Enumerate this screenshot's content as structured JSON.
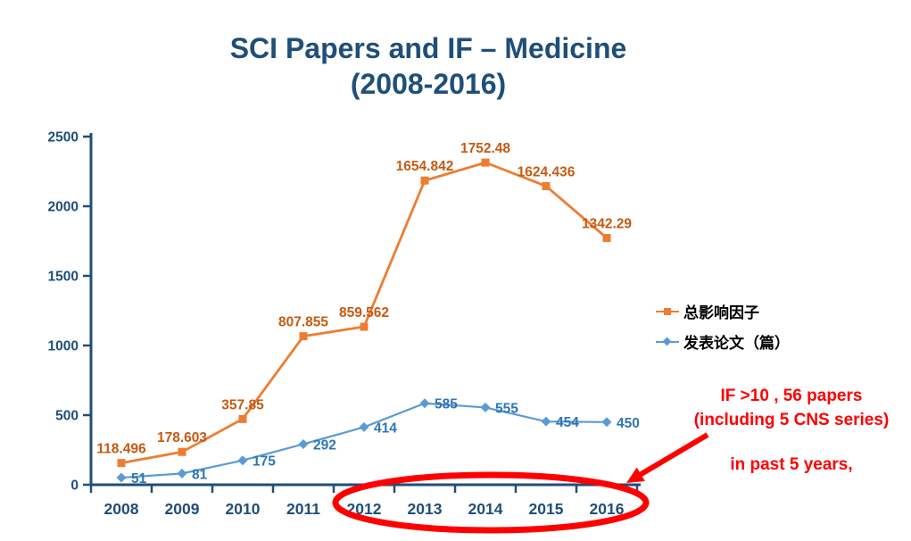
{
  "title": {
    "line1": "SCI Papers and IF – Medicine",
    "line2": "(2008-2016)"
  },
  "chart_data": {
    "type": "line",
    "categories": [
      "2008",
      "2009",
      "2010",
      "2011",
      "2012",
      "2013",
      "2014",
      "2015",
      "2016"
    ],
    "series": [
      {
        "name": "总影响因子",
        "values": [
          118.496,
          178.603,
          357.85,
          807.855,
          859.562,
          1654.842,
          1752.48,
          1624.436,
          1342.29
        ],
        "line_color": "#ED7D31",
        "label_color": "#C55A11",
        "marker": "square",
        "label_position": "above",
        "visual_scale": 1.32
      },
      {
        "name": "发表论文（篇）",
        "values": [
          51,
          81,
          175,
          292,
          414,
          585,
          555,
          454,
          450
        ],
        "line_color": "#5B9BD5",
        "label_color": "#2E75B6",
        "marker": "diamond",
        "label_position": "right",
        "visual_scale": 1
      }
    ],
    "ylim": [
      0,
      2500
    ],
    "yticks": [
      0,
      500,
      1000,
      1500,
      2000,
      2500
    ],
    "axis_color": "#1F4E79",
    "grid": false,
    "data_labels": true,
    "legend_position": "right-middle"
  },
  "annotation": {
    "line1": "IF >10 , 56 papers",
    "line2": "(including 5 CNS series)",
    "line3": "in past 5 years,",
    "color": "#FF0000",
    "ellipse_highlight": "x-axis years 2012-2016"
  },
  "colors": {
    "title_text": "#1F4E79",
    "axis_and_tick_text": "#1F4E79",
    "annotation_red": "#FF0000",
    "legend_text": "#000000",
    "background": "#FFFFFF"
  }
}
